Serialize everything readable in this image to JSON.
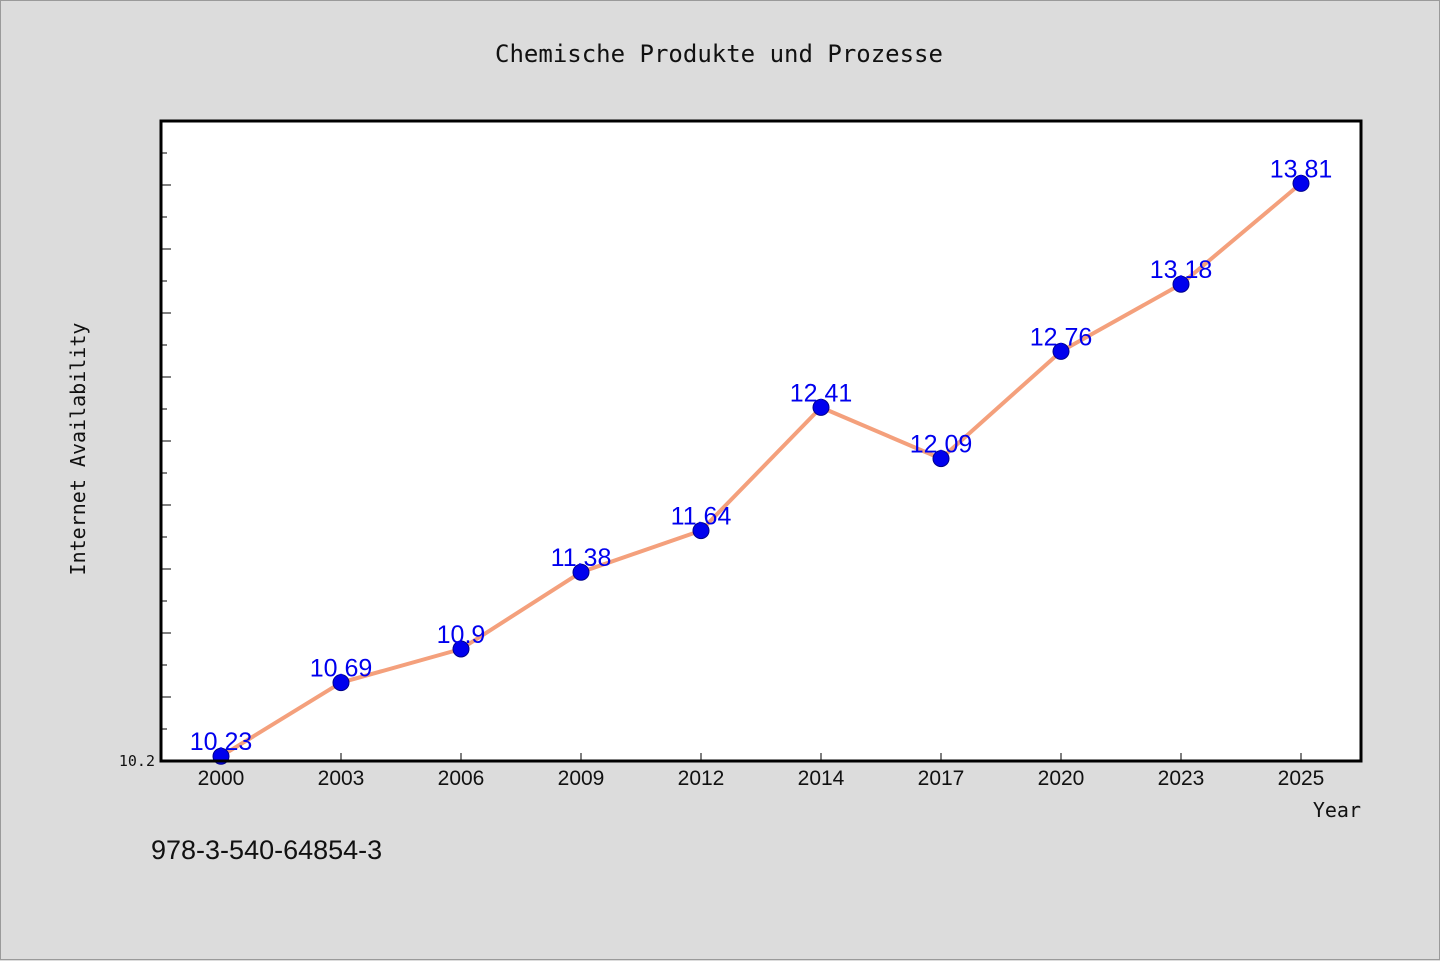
{
  "chart_data": {
    "type": "line",
    "title": "Chemische Produkte und Prozesse",
    "xlabel": "Year",
    "ylabel": "Internet Availability",
    "categories": [
      "2000",
      "2003",
      "2006",
      "2009",
      "2012",
      "2014",
      "2017",
      "2020",
      "2023",
      "2025"
    ],
    "series": [
      {
        "values": [
          10.23,
          10.69,
          10.9,
          11.38,
          11.64,
          12.41,
          12.09,
          12.76,
          13.18,
          13.81
        ],
        "labels": [
          "10.23",
          "10.69",
          "10.9",
          "11.38",
          "11.64",
          "12.41",
          "12.09",
          "12.76",
          "13.18",
          "13.81"
        ]
      }
    ],
    "ylim": [
      10.2,
      14.2
    ],
    "yticks": [
      10.2
    ],
    "ytick_labels": [
      "10.2"
    ],
    "grid": false,
    "colors": {
      "line": "#f4a07c",
      "marker": "#0000ee",
      "label": "#0000ee",
      "background": "#dcdcdc",
      "plot_background": "#ffffff"
    }
  },
  "footnote": "978-3-540-64854-3"
}
